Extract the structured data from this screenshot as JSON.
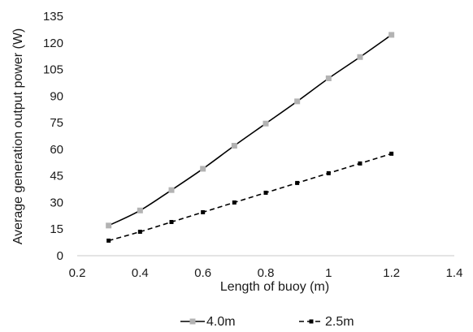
{
  "chart_data": {
    "type": "line",
    "xlabel": "Length of buoy (m)",
    "ylabel": "Average generation output power (W)",
    "xlim": [
      0.2,
      1.4
    ],
    "ylim": [
      0,
      135
    ],
    "x_ticks": [
      "0.2",
      "0.4",
      "0.6",
      "0.8",
      "1",
      "1.2",
      "1.4"
    ],
    "y_ticks": [
      "0",
      "15",
      "30",
      "45",
      "60",
      "75",
      "90",
      "105",
      "120",
      "135"
    ],
    "grid": false,
    "legend_position": "bottom",
    "series": [
      {
        "name": "4.0m",
        "line_style": "solid",
        "line_color": "#000000",
        "marker_color": "#b3b3b3",
        "x": [
          0.3,
          0.4,
          0.5,
          0.6,
          0.7,
          0.8,
          0.9,
          1.0,
          1.1,
          1.2
        ],
        "y": [
          17,
          25.5,
          37,
          49,
          62,
          74.5,
          87,
          100,
          112,
          124.5
        ]
      },
      {
        "name": "2.5m",
        "line_style": "dashed",
        "line_color": "#000000",
        "marker_color": "#000000",
        "x": [
          0.3,
          0.4,
          0.5,
          0.6,
          0.7,
          0.8,
          0.9,
          1.0,
          1.1,
          1.2
        ],
        "y": [
          8.5,
          13.5,
          19,
          24.5,
          30,
          35.5,
          41,
          46.5,
          52,
          57.5
        ]
      }
    ]
  }
}
